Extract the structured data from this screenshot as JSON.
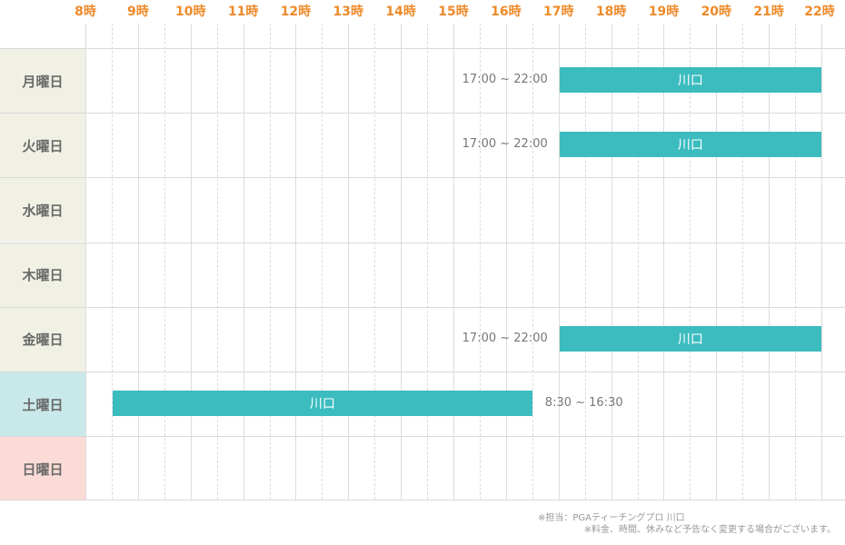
{
  "hours": [
    "8時",
    "9時",
    "10時",
    "11時",
    "12時",
    "13時",
    "14時",
    "15時",
    "16時",
    "17時",
    "18時",
    "19時",
    "20時",
    "21時",
    "22時"
  ],
  "colors": {
    "weekday_bg": "#f1f0e5",
    "saturday_bg": "#c9e8ea",
    "sunday_bg": "#fbdbd6",
    "bar": "#3cbcbf",
    "hour_label": "#ee8a2a"
  },
  "days": [
    {
      "label": "月曜日",
      "type": "weekday",
      "slots": [
        {
          "start": 17,
          "end": 22,
          "instructor": "川口",
          "time_text": "17:00 ~ 22:00",
          "text_side": "left"
        }
      ]
    },
    {
      "label": "火曜日",
      "type": "weekday",
      "slots": [
        {
          "start": 17,
          "end": 22,
          "instructor": "川口",
          "time_text": "17:00 ~ 22:00",
          "text_side": "left"
        }
      ]
    },
    {
      "label": "水曜日",
      "type": "weekday",
      "slots": []
    },
    {
      "label": "木曜日",
      "type": "weekday",
      "slots": []
    },
    {
      "label": "金曜日",
      "type": "weekday",
      "slots": [
        {
          "start": 17,
          "end": 22,
          "instructor": "川口",
          "time_text": "17:00 ~ 22:00",
          "text_side": "left"
        }
      ]
    },
    {
      "label": "土曜日",
      "type": "saturday",
      "slots": [
        {
          "start": 8.5,
          "end": 16.5,
          "instructor": "川口",
          "time_text": "8:30 ~ 16:30",
          "text_side": "right"
        }
      ]
    },
    {
      "label": "日曜日",
      "type": "sunday",
      "slots": []
    }
  ],
  "notes": [
    "※担当：PGAティーチングプロ 川口",
    "※料金、時間、休みなど予告なく変更する場合がございます。"
  ]
}
